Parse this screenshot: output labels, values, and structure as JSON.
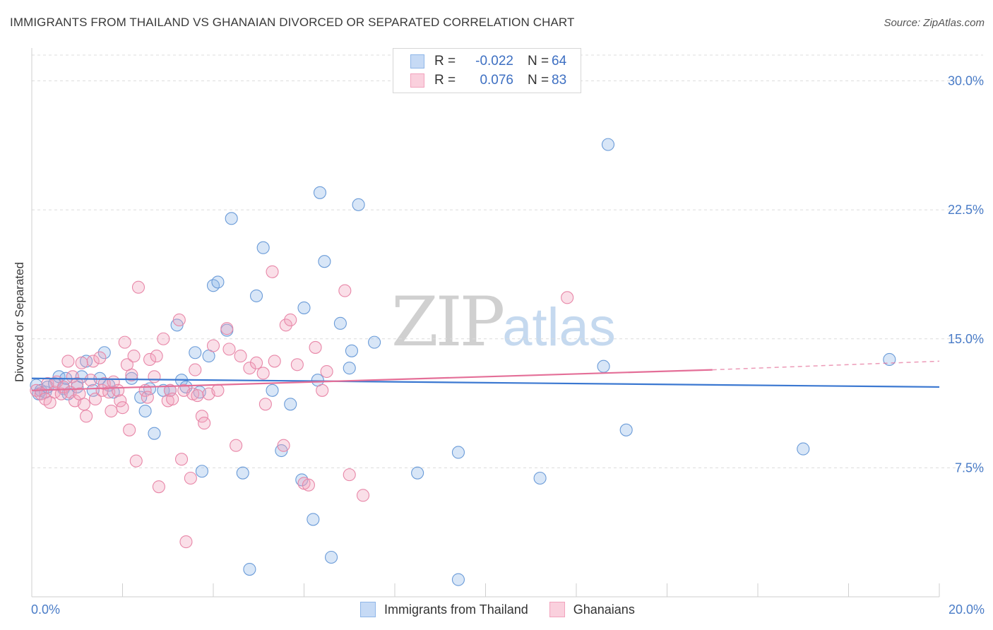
{
  "header": {
    "title": "IMMIGRANTS FROM THAILAND VS GHANAIAN DIVORCED OR SEPARATED CORRELATION CHART",
    "source": "Source: ZipAtlas.com"
  },
  "watermark": {
    "zip": "ZIP",
    "atlas": "atlas"
  },
  "legend": {
    "rows": [
      {
        "r_label": "R =",
        "r_value": "-0.022",
        "n_label": "N =",
        "n_value": "64",
        "color": "#8fb6e8"
      },
      {
        "r_label": "R =",
        "r_value": "0.076",
        "n_label": "N =",
        "n_value": "83",
        "color": "#f2a3bd"
      }
    ]
  },
  "bottom_legend": {
    "items": [
      {
        "label": "Immigrants from Thailand",
        "color": "#8fb6e8"
      },
      {
        "label": "Ghanaians",
        "color": "#f2a3bd"
      }
    ]
  },
  "chart_data": {
    "type": "scatter",
    "xlabel": "",
    "ylabel": "Divorced or Separated",
    "xlim": [
      0,
      20
    ],
    "ylim": [
      0,
      31.5
    ],
    "x_tick_labels": [
      {
        "value": 0,
        "label": "0.0%"
      },
      {
        "value": 20,
        "label": "20.0%"
      }
    ],
    "y_ticks": [
      {
        "value": 7.5,
        "label": "7.5%"
      },
      {
        "value": 15.0,
        "label": "15.0%"
      },
      {
        "value": 22.5,
        "label": "22.5%"
      },
      {
        "value": 30.0,
        "label": "30.0%"
      }
    ],
    "grid": "horizontal dashed",
    "series": [
      {
        "name": "Immigrants from Thailand",
        "color": "#8fb6e8",
        "stroke": "#6a9bd8",
        "trend": {
          "x": [
            0,
            20
          ],
          "y": [
            12.7,
            12.2
          ],
          "color": "#3b78d1"
        },
        "points": [
          [
            0.1,
            12.3
          ],
          [
            0.15,
            11.8
          ],
          [
            0.2,
            12.0
          ],
          [
            0.3,
            11.9
          ],
          [
            0.35,
            12.2
          ],
          [
            0.5,
            12.4
          ],
          [
            0.6,
            12.8
          ],
          [
            0.7,
            12.1
          ],
          [
            0.75,
            12.7
          ],
          [
            0.8,
            11.8
          ],
          [
            1.0,
            12.2
          ],
          [
            1.1,
            12.8
          ],
          [
            1.2,
            13.7
          ],
          [
            1.35,
            12.0
          ],
          [
            1.5,
            12.7
          ],
          [
            1.6,
            14.2
          ],
          [
            1.7,
            12.3
          ],
          [
            1.8,
            11.9
          ],
          [
            2.2,
            12.7
          ],
          [
            2.4,
            11.6
          ],
          [
            2.5,
            10.8
          ],
          [
            2.6,
            12.1
          ],
          [
            2.7,
            9.5
          ],
          [
            2.9,
            12.0
          ],
          [
            3.05,
            12.0
          ],
          [
            3.2,
            15.8
          ],
          [
            3.3,
            12.6
          ],
          [
            3.4,
            12.2
          ],
          [
            3.6,
            14.2
          ],
          [
            3.7,
            11.9
          ],
          [
            3.75,
            7.3
          ],
          [
            3.9,
            14.0
          ],
          [
            4.0,
            18.1
          ],
          [
            4.1,
            18.3
          ],
          [
            4.3,
            15.5
          ],
          [
            4.4,
            22.0
          ],
          [
            4.65,
            7.2
          ],
          [
            4.8,
            1.6
          ],
          [
            4.95,
            17.5
          ],
          [
            5.1,
            20.3
          ],
          [
            5.3,
            12.0
          ],
          [
            5.5,
            8.5
          ],
          [
            5.7,
            11.2
          ],
          [
            5.95,
            6.8
          ],
          [
            6.0,
            16.8
          ],
          [
            6.2,
            4.5
          ],
          [
            6.3,
            12.6
          ],
          [
            6.35,
            23.5
          ],
          [
            6.45,
            19.5
          ],
          [
            6.6,
            2.3
          ],
          [
            6.8,
            15.9
          ],
          [
            7.0,
            13.3
          ],
          [
            7.05,
            14.3
          ],
          [
            7.2,
            22.8
          ],
          [
            7.55,
            14.8
          ],
          [
            8.5,
            7.2
          ],
          [
            9.4,
            8.4
          ],
          [
            9.4,
            1.0
          ],
          [
            11.2,
            6.9
          ],
          [
            12.6,
            13.4
          ],
          [
            12.7,
            26.3
          ],
          [
            13.1,
            9.7
          ],
          [
            17.0,
            8.6
          ],
          [
            18.9,
            13.8
          ]
        ]
      },
      {
        "name": "Ghanaians",
        "color": "#f2a3bd",
        "stroke": "#e887a8",
        "trend": {
          "x": [
            0,
            15
          ],
          "y": [
            12.0,
            13.2
          ],
          "color": "#e46f98",
          "dashed_extension": {
            "x": [
              15,
              20
            ],
            "y": [
              13.2,
              13.7
            ]
          }
        },
        "points": [
          [
            0.1,
            12.0
          ],
          [
            0.2,
            11.8
          ],
          [
            0.3,
            11.5
          ],
          [
            0.35,
            12.4
          ],
          [
            0.4,
            11.3
          ],
          [
            0.5,
            11.9
          ],
          [
            0.55,
            12.5
          ],
          [
            0.65,
            11.8
          ],
          [
            0.7,
            12.2
          ],
          [
            0.8,
            13.7
          ],
          [
            0.85,
            11.9
          ],
          [
            0.9,
            12.8
          ],
          [
            0.95,
            11.4
          ],
          [
            1.0,
            12.4
          ],
          [
            1.05,
            11.8
          ],
          [
            1.1,
            13.6
          ],
          [
            1.15,
            11.2
          ],
          [
            1.2,
            10.5
          ],
          [
            1.3,
            12.6
          ],
          [
            1.35,
            13.7
          ],
          [
            1.4,
            11.5
          ],
          [
            1.5,
            13.9
          ],
          [
            1.55,
            12.0
          ],
          [
            1.6,
            12.4
          ],
          [
            1.7,
            11.9
          ],
          [
            1.75,
            10.8
          ],
          [
            1.8,
            12.5
          ],
          [
            1.9,
            12.0
          ],
          [
            1.95,
            11.4
          ],
          [
            2.0,
            11.0
          ],
          [
            2.05,
            14.8
          ],
          [
            2.1,
            13.5
          ],
          [
            2.15,
            9.7
          ],
          [
            2.2,
            12.9
          ],
          [
            2.25,
            14.0
          ],
          [
            2.3,
            7.9
          ],
          [
            2.35,
            18.0
          ],
          [
            2.5,
            12.0
          ],
          [
            2.55,
            11.6
          ],
          [
            2.6,
            13.8
          ],
          [
            2.7,
            12.8
          ],
          [
            2.75,
            14.0
          ],
          [
            2.8,
            6.4
          ],
          [
            2.9,
            15.0
          ],
          [
            3.0,
            11.4
          ],
          [
            3.05,
            12.0
          ],
          [
            3.1,
            11.5
          ],
          [
            3.25,
            16.1
          ],
          [
            3.3,
            8.0
          ],
          [
            3.35,
            12.0
          ],
          [
            3.4,
            3.2
          ],
          [
            3.5,
            6.9
          ],
          [
            3.55,
            11.8
          ],
          [
            3.6,
            13.2
          ],
          [
            3.65,
            11.7
          ],
          [
            3.75,
            10.5
          ],
          [
            3.8,
            10.1
          ],
          [
            3.9,
            11.8
          ],
          [
            4.0,
            14.6
          ],
          [
            4.1,
            12.0
          ],
          [
            4.3,
            15.6
          ],
          [
            4.35,
            14.4
          ],
          [
            4.5,
            8.8
          ],
          [
            4.6,
            14.0
          ],
          [
            4.8,
            13.3
          ],
          [
            4.95,
            13.6
          ],
          [
            5.1,
            13.0
          ],
          [
            5.15,
            11.2
          ],
          [
            5.3,
            18.9
          ],
          [
            5.35,
            13.7
          ],
          [
            5.55,
            8.8
          ],
          [
            5.6,
            15.8
          ],
          [
            5.7,
            16.1
          ],
          [
            5.85,
            13.5
          ],
          [
            6.0,
            6.6
          ],
          [
            6.1,
            6.5
          ],
          [
            6.25,
            14.5
          ],
          [
            6.4,
            12.0
          ],
          [
            6.5,
            13.1
          ],
          [
            6.9,
            17.8
          ],
          [
            7.0,
            7.1
          ],
          [
            7.3,
            5.9
          ],
          [
            11.8,
            17.4
          ]
        ]
      }
    ]
  }
}
